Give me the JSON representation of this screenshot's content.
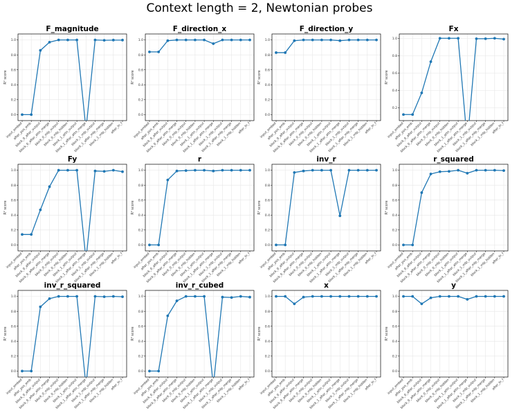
{
  "figure": {
    "suptitle": "Context length = 2, Newtonian probes"
  },
  "colors": {
    "line": "#1f77b4",
    "grid": "#e6e6e6",
    "axes": "#000000"
  },
  "chart_data": [
    {
      "type": "line",
      "title": "F_magnitude",
      "ylabel": "R² score",
      "ylim": [
        -0.08,
        1.08
      ],
      "yticks": [
        0.0,
        0.2,
        0.4,
        0.6,
        0.8,
        1.0
      ],
      "grid": true,
      "categories": [
        "input_embed",
        "after_pos_emb",
        "block_0_after_output",
        "block_0_after_attn_merge",
        "block_0_mlp_output",
        "block_0_mlp_hidden",
        "block_1_attn_output",
        "block_1_after_attn_merge",
        "block_1_mlp_output",
        "block_1_after_mlp_merge",
        "block_1_mlp_hidden",
        "after_ln_f"
      ],
      "values": [
        0.0,
        0.0,
        0.86,
        0.97,
        1.0,
        1.0,
        1.0,
        -0.2,
        1.0,
        0.995,
        0.998,
        0.998
      ]
    },
    {
      "type": "line",
      "title": "F_direction_x",
      "ylabel": "R² score",
      "ylim": [
        -0.08,
        1.08
      ],
      "yticks": [
        0.0,
        0.2,
        0.4,
        0.6,
        0.8,
        1.0
      ],
      "grid": true,
      "categories": [
        "input_embed",
        "after_pos_emb",
        "block_0_after_output",
        "block_0_after_attn_merge",
        "block_0_mlp_output",
        "block_0_mlp_hidden",
        "block_1_attn_output",
        "block_1_after_attn_merge",
        "block_1_mlp_output",
        "block_1_after_mlp_merge",
        "block_1_mlp_hidden",
        "after_ln_f"
      ],
      "values": [
        0.84,
        0.84,
        0.99,
        1.0,
        1.0,
        1.0,
        1.0,
        0.95,
        1.0,
        1.0,
        1.0,
        1.0
      ]
    },
    {
      "type": "line",
      "title": "F_direction_y",
      "ylabel": "R² score",
      "ylim": [
        -0.08,
        1.08
      ],
      "yticks": [
        0.0,
        0.2,
        0.4,
        0.6,
        0.8,
        1.0
      ],
      "grid": true,
      "categories": [
        "input_embed",
        "after_pos_emb",
        "block_0_after_output",
        "block_0_after_attn_merge",
        "block_0_mlp_output",
        "block_0_mlp_hidden",
        "block_1_attn_output",
        "block_1_after_attn_merge",
        "block_1_mlp_output",
        "block_1_after_mlp_merge",
        "block_1_mlp_hidden",
        "after_ln_f"
      ],
      "values": [
        0.83,
        0.83,
        0.99,
        1.0,
        1.0,
        1.0,
        1.0,
        0.99,
        1.0,
        1.0,
        1.0,
        1.0
      ]
    },
    {
      "type": "line",
      "title": "Fx",
      "ylabel": "R² score",
      "ylim": [
        0.05,
        1.05
      ],
      "yticks": [
        0.2,
        0.4,
        0.6,
        0.8,
        1.0
      ],
      "grid": true,
      "categories": [
        "input_embed",
        "after_pos_emb",
        "block_0_after_output",
        "block_0_after_attn_merge",
        "block_0_mlp_output",
        "block_0_mlp_hidden",
        "block_1_attn_output",
        "block_1_after_attn_merge",
        "block_1_mlp_output",
        "block_1_after_mlp_merge",
        "block_1_mlp_hidden",
        "after_ln_f"
      ],
      "values": [
        0.12,
        0.12,
        0.37,
        0.73,
        1.0,
        1.0,
        1.0,
        -0.2,
        0.995,
        0.995,
        1.0,
        0.99
      ]
    },
    {
      "type": "line",
      "title": "Fy",
      "ylabel": "R² score",
      "ylim": [
        -0.08,
        1.08
      ],
      "yticks": [
        0.0,
        0.2,
        0.4,
        0.6,
        0.8,
        1.0
      ],
      "grid": true,
      "categories": [
        "input_embed",
        "after_pos_emb",
        "block_0_after_output",
        "block_0_after_attn_merge",
        "block_0_mlp_output",
        "block_0_mlp_hidden",
        "block_1_attn_output",
        "block_1_after_attn_merge",
        "block_1_mlp_output",
        "block_1_after_mlp_merge",
        "block_1_mlp_hidden",
        "after_ln_f"
      ],
      "values": [
        0.14,
        0.14,
        0.47,
        0.78,
        1.0,
        1.0,
        1.0,
        -0.2,
        0.99,
        0.985,
        1.0,
        0.98
      ]
    },
    {
      "type": "line",
      "title": "r",
      "ylabel": "R² score",
      "ylim": [
        -0.08,
        1.08
      ],
      "yticks": [
        0.0,
        0.2,
        0.4,
        0.6,
        0.8,
        1.0
      ],
      "grid": true,
      "categories": [
        "input_embed",
        "after_pos_emb",
        "block_0_after_output",
        "block_0_after_attn_merge",
        "block_0_mlp_output",
        "block_0_mlp_hidden",
        "block_1_attn_output",
        "block_1_after_attn_merge",
        "block_1_mlp_output",
        "block_1_after_mlp_merge",
        "block_1_mlp_hidden",
        "after_ln_f"
      ],
      "values": [
        0.0,
        0.0,
        0.87,
        0.99,
        0.995,
        1.0,
        1.0,
        0.99,
        1.0,
        1.0,
        1.0,
        1.0
      ]
    },
    {
      "type": "line",
      "title": "inv_r",
      "ylabel": "R² score",
      "ylim": [
        -0.08,
        1.08
      ],
      "yticks": [
        0.0,
        0.2,
        0.4,
        0.6,
        0.8,
        1.0
      ],
      "grid": true,
      "categories": [
        "input_embed",
        "after_pos_emb",
        "block_0_after_output",
        "block_0_after_attn_merge",
        "block_0_mlp_output",
        "block_0_mlp_hidden",
        "block_1_attn_output",
        "block_1_after_attn_merge",
        "block_1_mlp_output",
        "block_1_after_mlp_merge",
        "block_1_mlp_hidden",
        "after_ln_f"
      ],
      "values": [
        0.0,
        0.0,
        0.97,
        0.99,
        1.0,
        1.0,
        1.0,
        0.39,
        1.0,
        1.0,
        1.0,
        1.0
      ]
    },
    {
      "type": "line",
      "title": "r_squared",
      "ylabel": "R² score",
      "ylim": [
        -0.08,
        1.08
      ],
      "yticks": [
        0.0,
        0.2,
        0.4,
        0.6,
        0.8,
        1.0
      ],
      "grid": true,
      "categories": [
        "input_embed",
        "after_pos_emb",
        "block_0_after_output",
        "block_0_after_attn_merge",
        "block_0_mlp_output",
        "block_0_mlp_hidden",
        "block_1_attn_output",
        "block_1_after_attn_merge",
        "block_1_mlp_output",
        "block_1_after_mlp_merge",
        "block_1_mlp_hidden",
        "after_ln_f"
      ],
      "values": [
        0.0,
        0.0,
        0.7,
        0.95,
        0.98,
        0.985,
        1.0,
        0.96,
        1.0,
        1.0,
        1.0,
        0.995
      ]
    },
    {
      "type": "line",
      "title": "inv_r_squared",
      "ylabel": "R² score",
      "ylim": [
        -0.08,
        1.08
      ],
      "yticks": [
        0.0,
        0.2,
        0.4,
        0.6,
        0.8,
        1.0
      ],
      "grid": true,
      "categories": [
        "input_embed",
        "after_pos_emb",
        "block_0_after_output",
        "block_0_after_attn_merge",
        "block_0_mlp_output",
        "block_0_mlp_hidden",
        "block_1_attn_output",
        "block_1_after_attn_merge",
        "block_1_mlp_output",
        "block_1_after_mlp_merge",
        "block_1_mlp_hidden",
        "after_ln_f"
      ],
      "values": [
        0.0,
        0.0,
        0.86,
        0.97,
        1.0,
        1.0,
        1.0,
        -0.2,
        1.0,
        0.995,
        1.0,
        0.995
      ]
    },
    {
      "type": "line",
      "title": "inv_r_cubed",
      "ylabel": "R² score",
      "ylim": [
        -0.08,
        1.08
      ],
      "yticks": [
        0.0,
        0.2,
        0.4,
        0.6,
        0.8,
        1.0
      ],
      "grid": true,
      "categories": [
        "input_embed",
        "after_pos_emb",
        "block_0_after_output",
        "block_0_after_attn_merge",
        "block_0_mlp_output",
        "block_0_mlp_hidden",
        "block_1_attn_output",
        "block_1_after_attn_merge",
        "block_1_mlp_output",
        "block_1_after_mlp_merge",
        "block_1_mlp_hidden",
        "after_ln_f"
      ],
      "values": [
        0.0,
        0.0,
        0.74,
        0.94,
        1.0,
        1.0,
        1.0,
        -0.2,
        0.99,
        0.985,
        1.0,
        0.99
      ]
    },
    {
      "type": "line",
      "title": "x",
      "ylabel": "R² score",
      "ylim": [
        -0.08,
        1.08
      ],
      "yticks": [
        0.0,
        0.2,
        0.4,
        0.6,
        0.8,
        1.0
      ],
      "grid": true,
      "categories": [
        "input_embed",
        "after_pos_emb",
        "block_0_after_output",
        "block_0_after_attn_merge",
        "block_0_mlp_output",
        "block_0_mlp_hidden",
        "block_1_attn_output",
        "block_1_after_attn_merge",
        "block_1_mlp_output",
        "block_1_after_mlp_merge",
        "block_1_mlp_hidden",
        "after_ln_f"
      ],
      "values": [
        1.0,
        1.0,
        0.9,
        0.99,
        1.0,
        1.0,
        1.0,
        1.0,
        1.0,
        1.0,
        1.0,
        1.0
      ]
    },
    {
      "type": "line",
      "title": "y",
      "ylabel": "R² score",
      "ylim": [
        -0.08,
        1.08
      ],
      "yticks": [
        0.0,
        0.2,
        0.4,
        0.6,
        0.8,
        1.0
      ],
      "grid": true,
      "categories": [
        "input_embed",
        "after_pos_emb",
        "block_0_after_output",
        "block_0_after_attn_merge",
        "block_0_mlp_output",
        "block_0_mlp_hidden",
        "block_1_attn_output",
        "block_1_after_attn_merge",
        "block_1_mlp_output",
        "block_1_after_mlp_merge",
        "block_1_mlp_hidden",
        "after_ln_f"
      ],
      "values": [
        1.0,
        1.0,
        0.9,
        0.98,
        1.0,
        1.0,
        1.0,
        0.96,
        1.0,
        1.0,
        1.0,
        1.0
      ]
    }
  ]
}
